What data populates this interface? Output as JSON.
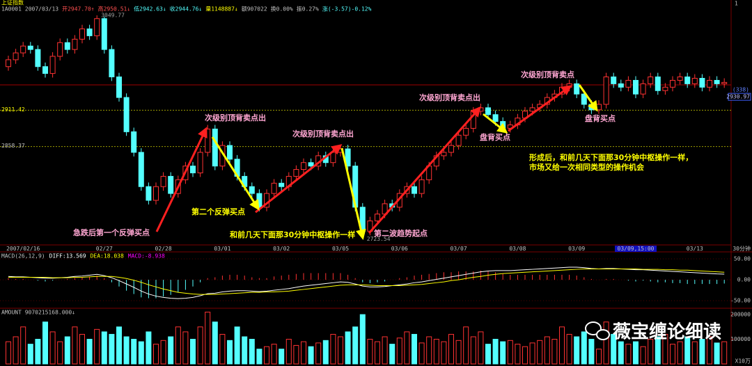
{
  "header": {
    "title": "上证指数",
    "corner": "1",
    "items": [
      "1A0001",
      "2007/03/13",
      "开2947.70↑",
      "高2950.51↓",
      "低2942.63↓",
      "收2944.76↓",
      "量1148887↓",
      "额907022",
      "换0.00%",
      "振0.27%",
      "涨(-3.57)-0.12%"
    ]
  },
  "watermark": "薇宝缠论细读",
  "chart_data": [
    {
      "type": "candlestick",
      "period": "30分钟",
      "up_color": "#ff3232",
      "down_color": "#54ffff",
      "ylim": [
        2717,
        3062
      ],
      "yticks": [
        2911.42,
        2858.37
      ],
      "prev_close": 2948.33,
      "cursor_price": {
        "count": "(338)",
        "value": 2930.97
      },
      "extremes": [
        3049.77,
        2723.54
      ],
      "categories": [
        null,
        null,
        "2007/02/16",
        null,
        null,
        null,
        null,
        null,
        null,
        null,
        null,
        null,
        null,
        "02/27",
        null,
        null,
        null,
        null,
        null,
        null,
        null,
        "02/28",
        null,
        null,
        null,
        null,
        null,
        null,
        null,
        "03/01",
        null,
        null,
        null,
        null,
        null,
        null,
        null,
        "03/02",
        null,
        null,
        null,
        null,
        null,
        null,
        null,
        "03/05",
        null,
        null,
        null,
        null,
        null,
        null,
        null,
        "03/06",
        null,
        null,
        null,
        null,
        null,
        null,
        null,
        "03/07",
        null,
        null,
        null,
        null,
        null,
        null,
        null,
        "03/08",
        null,
        null,
        null,
        null,
        null,
        null,
        null,
        "03/09",
        null,
        null,
        null,
        null,
        null,
        null,
        null,
        "03/09,15:00",
        null,
        null,
        null,
        null,
        null,
        null,
        null,
        "03/13",
        null,
        null,
        null,
        null
      ],
      "candles": [
        [
          2975,
          2991,
          2969,
          2985
        ],
        [
          2985,
          3001,
          2979,
          2995
        ],
        [
          2995,
          3011,
          2989,
          3005
        ],
        [
          3005,
          3011,
          2994,
          3000
        ],
        [
          3000,
          3006,
          2969,
          2975
        ],
        [
          2975,
          2981,
          2959,
          2965
        ],
        [
          2965,
          2996,
          2959,
          2990
        ],
        [
          2990,
          3016,
          2984,
          3010
        ],
        [
          3010,
          3016,
          2994,
          3000
        ],
        [
          3000,
          3021,
          2994,
          3015
        ],
        [
          3015,
          3036,
          3009,
          3030
        ],
        [
          3030,
          3036,
          3014,
          3020
        ],
        [
          3020,
          3049.77,
          3014,
          3045
        ],
        [
          3045,
          3048,
          2994,
          3000
        ],
        [
          3000,
          3006,
          2954,
          2960
        ],
        [
          2960,
          2966,
          2924,
          2930
        ],
        [
          2930,
          2936,
          2874,
          2880
        ],
        [
          2880,
          2886,
          2844,
          2850
        ],
        [
          2850,
          2856,
          2794,
          2800
        ],
        [
          2800,
          2806,
          2774,
          2780
        ],
        [
          2780,
          2806,
          2774,
          2800
        ],
        [
          2800,
          2821,
          2794,
          2815
        ],
        [
          2815,
          2821,
          2784,
          2790
        ],
        [
          2790,
          2816,
          2784,
          2810
        ],
        [
          2810,
          2836,
          2804,
          2830
        ],
        [
          2830,
          2836,
          2814,
          2820
        ],
        [
          2820,
          2856,
          2814,
          2850
        ],
        [
          2850,
          2890,
          2844,
          2884
        ],
        [
          2884,
          2890,
          2824,
          2830
        ],
        [
          2830,
          2866,
          2824,
          2860
        ],
        [
          2860,
          2866,
          2834,
          2840
        ],
        [
          2840,
          2846,
          2809,
          2815
        ],
        [
          2815,
          2821,
          2794,
          2800
        ],
        [
          2800,
          2806,
          2784,
          2790
        ],
        [
          2790,
          2796,
          2764,
          2770
        ],
        [
          2770,
          2796,
          2764,
          2790
        ],
        [
          2790,
          2811,
          2784,
          2805
        ],
        [
          2805,
          2811,
          2794,
          2800
        ],
        [
          2800,
          2821,
          2794,
          2815
        ],
        [
          2815,
          2831,
          2809,
          2825
        ],
        [
          2825,
          2841,
          2819,
          2835
        ],
        [
          2835,
          2841,
          2824,
          2830
        ],
        [
          2830,
          2851,
          2824,
          2845
        ],
        [
          2845,
          2851,
          2829,
          2835
        ],
        [
          2835,
          2856,
          2829,
          2850
        ],
        [
          2850,
          2861,
          2844,
          2855
        ],
        [
          2855,
          2861,
          2824,
          2830
        ],
        [
          2830,
          2836,
          2764,
          2770
        ],
        [
          2770,
          2776,
          2723.54,
          2735
        ],
        [
          2735,
          2756,
          2729,
          2750
        ],
        [
          2750,
          2766,
          2744,
          2760
        ],
        [
          2760,
          2781,
          2754,
          2775
        ],
        [
          2775,
          2781,
          2764,
          2770
        ],
        [
          2770,
          2796,
          2764,
          2790
        ],
        [
          2790,
          2806,
          2784,
          2800
        ],
        [
          2800,
          2806,
          2784,
          2790
        ],
        [
          2790,
          2816,
          2784,
          2810
        ],
        [
          2810,
          2836,
          2804,
          2830
        ],
        [
          2830,
          2851,
          2824,
          2845
        ],
        [
          2845,
          2856,
          2839,
          2850
        ],
        [
          2850,
          2866,
          2844,
          2860
        ],
        [
          2860,
          2881,
          2854,
          2875
        ],
        [
          2875,
          2891,
          2869,
          2885
        ],
        [
          2885,
          2916,
          2879,
          2910
        ],
        [
          2910,
          2921,
          2904,
          2915
        ],
        [
          2915,
          2921,
          2899,
          2905
        ],
        [
          2905,
          2911,
          2889,
          2895
        ],
        [
          2895,
          2901,
          2879,
          2885
        ],
        [
          2885,
          2896,
          2879,
          2890
        ],
        [
          2890,
          2906,
          2884,
          2900
        ],
        [
          2900,
          2916,
          2894,
          2910
        ],
        [
          2910,
          2921,
          2904,
          2915
        ],
        [
          2915,
          2926,
          2909,
          2920
        ],
        [
          2920,
          2936,
          2914,
          2930
        ],
        [
          2930,
          2941,
          2924,
          2935
        ],
        [
          2935,
          2951,
          2929,
          2945
        ],
        [
          2945,
          2956,
          2939,
          2950
        ],
        [
          2950,
          2956,
          2929,
          2935
        ],
        [
          2935,
          2941,
          2914,
          2920
        ],
        [
          2920,
          2926,
          2906,
          2912
        ],
        [
          2912,
          2926,
          2906,
          2920
        ],
        [
          2920,
          2966,
          2914,
          2960
        ],
        [
          2960,
          2966,
          2944,
          2950
        ],
        [
          2950,
          2956,
          2939,
          2945
        ],
        [
          2945,
          2961,
          2939,
          2955
        ],
        [
          2955,
          2961,
          2929,
          2935
        ],
        [
          2935,
          2956,
          2929,
          2950
        ],
        [
          2950,
          2966,
          2944,
          2960
        ],
        [
          2960,
          2966,
          2934,
          2940
        ],
        [
          2940,
          2951,
          2934,
          2945
        ],
        [
          2945,
          2961,
          2939,
          2955
        ],
        [
          2955,
          2966,
          2949,
          2960
        ],
        [
          2960,
          2966,
          2944,
          2950
        ],
        [
          2950,
          2964,
          2944,
          2958
        ],
        [
          2958,
          2964,
          2939,
          2945
        ],
        [
          2945,
          2961,
          2939,
          2955
        ],
        [
          2955,
          2961,
          2944,
          2950
        ],
        [
          2950,
          2958,
          2944,
          2952
        ]
      ],
      "annotations": [
        {
          "text": "急跌后第一个反弹买点",
          "color": "#ffa6d2"
        },
        {
          "text": "次级别顶背卖点出",
          "color": "#ffa6d2"
        },
        {
          "text": "第二个反弹买点",
          "color": "#ffff00"
        },
        {
          "text": "次级别顶背卖点出",
          "color": "#ffa6d2"
        },
        {
          "text": "和前几天下面那30分钟中枢操作一样",
          "color": "#ffff00"
        },
        {
          "text": "第二波趋势起点",
          "color": "#ffa6d2"
        },
        {
          "text": "次级别顶背卖点出",
          "color": "#ffa6d2"
        },
        {
          "text": "盘背买点",
          "color": "#ffa6d2"
        },
        {
          "text": "次级别顶背卖点",
          "color": "#ffa6d2"
        },
        {
          "text": "盘背买点",
          "color": "#ffa6d2"
        },
        {
          "text": "形成后，和前几天下面那30分钟中枢操作一样，",
          "color": "#ffff00"
        },
        {
          "text": "市场又给一次相同类型的操作机会",
          "color": "#ffff00"
        }
      ]
    },
    {
      "type": "macd",
      "title": "MACD(26,12,9)",
      "ylim": [
        -63,
        65
      ],
      "yticks": [
        {
          "value": 50,
          "label": "50.00"
        },
        {
          "value": 0,
          "label": "0.00"
        },
        {
          "value": -50,
          "label": "-50.00"
        }
      ],
      "series": [
        {
          "name": "DIFF:13.569",
          "color": "#ffffff",
          "values": [
            8,
            7,
            7,
            6,
            5,
            4,
            4,
            5,
            6,
            8,
            9,
            11,
            13,
            10,
            5,
            -2,
            -10,
            -18,
            -27,
            -34,
            -39,
            -42,
            -44,
            -45,
            -44,
            -42,
            -38,
            -33,
            -32,
            -29,
            -27,
            -26,
            -26,
            -27,
            -28,
            -27,
            -25,
            -23,
            -21,
            -18,
            -15,
            -13,
            -11,
            -9,
            -7,
            -5,
            -6,
            -10,
            -15,
            -17,
            -17,
            -16,
            -14,
            -12,
            -10,
            -7,
            -5,
            -2,
            1,
            4,
            7,
            10,
            13,
            16,
            19,
            21,
            22,
            22,
            22,
            23,
            24,
            25,
            26,
            27,
            28,
            29,
            30,
            30,
            29,
            27,
            26,
            27,
            27,
            26,
            25,
            24,
            24,
            23,
            22,
            21,
            20,
            19,
            18,
            17,
            16,
            15,
            14,
            13.569
          ]
        },
        {
          "name": "DEA:18.038",
          "color": "#ffff00",
          "values": [
            6,
            6,
            6,
            6,
            6,
            6,
            5,
            5,
            5,
            6,
            6,
            7,
            8,
            8,
            8,
            6,
            3,
            -1,
            -6,
            -12,
            -17,
            -22,
            -26,
            -30,
            -32,
            -34,
            -35,
            -35,
            -35,
            -34,
            -33,
            -32,
            -31,
            -30,
            -30,
            -29,
            -29,
            -28,
            -27,
            -25,
            -23,
            -21,
            -19,
            -17,
            -15,
            -13,
            -12,
            -12,
            -12,
            -13,
            -14,
            -14,
            -14,
            -14,
            -13,
            -12,
            -11,
            -9,
            -7,
            -5,
            -2,
            0,
            3,
            6,
            8,
            11,
            13,
            15,
            16,
            17,
            18,
            19,
            20,
            21,
            22,
            23,
            24,
            25,
            26,
            26,
            26,
            26,
            26,
            26,
            26,
            26,
            25,
            25,
            25,
            24,
            24,
            23,
            23,
            22,
            21,
            20,
            19,
            18.038
          ]
        }
      ],
      "histogram": {
        "name": "MACD:-8.938",
        "color": "#ff00ff",
        "values": [
          4,
          2,
          2,
          0,
          -2,
          -4,
          -2,
          0,
          2,
          4,
          6,
          8,
          10,
          4,
          -6,
          -16,
          -26,
          -34,
          -42,
          -44,
          -44,
          -40,
          -36,
          -30,
          -24,
          -16,
          -6,
          4,
          6,
          10,
          12,
          12,
          10,
          6,
          4,
          4,
          8,
          10,
          12,
          14,
          16,
          16,
          16,
          16,
          16,
          16,
          12,
          4,
          -6,
          -8,
          -6,
          -4,
          0,
          4,
          6,
          10,
          12,
          14,
          16,
          18,
          18,
          20,
          20,
          20,
          22,
          20,
          18,
          14,
          12,
          12,
          12,
          12,
          12,
          12,
          12,
          12,
          12,
          10,
          6,
          2,
          0,
          2,
          2,
          0,
          -2,
          -4,
          -2,
          -4,
          -6,
          -6,
          -8,
          -8,
          -10,
          -10,
          -10,
          -10,
          -10,
          -8.938
        ]
      }
    },
    {
      "type": "bar",
      "title": "AMOUNT 9070215168.000↓",
      "unit": "X10万",
      "ylim": [
        0,
        220000
      ],
      "yticks": [
        200000,
        100000
      ],
      "values": [
        90000,
        110000,
        150000,
        80000,
        100000,
        170000,
        130000,
        90000,
        110000,
        150000,
        120000,
        100000,
        140000,
        130000,
        120000,
        150000,
        110000,
        100000,
        90000,
        130000,
        80000,
        95000,
        110000,
        150000,
        130000,
        100000,
        150000,
        210000,
        170000,
        120000,
        95000,
        150000,
        110000,
        100000,
        60000,
        70000,
        80000,
        60000,
        100000,
        75000,
        90000,
        70000,
        85000,
        95000,
        120000,
        110000,
        130000,
        150000,
        200000,
        100000,
        90000,
        110000,
        80000,
        105000,
        130000,
        120000,
        85000,
        110000,
        100000,
        90000,
        120000,
        95000,
        150000,
        110000,
        130000,
        80000,
        100000,
        90000,
        95000,
        80000,
        70000,
        85000,
        95000,
        110000,
        100000,
        150000,
        120000,
        110000,
        130000,
        100000,
        60000,
        170000,
        120000,
        90000,
        80000,
        90000,
        70000,
        100000,
        110000,
        120000,
        80000,
        90000,
        110000,
        90000,
        100000,
        110000,
        85000,
        90000
      ]
    }
  ]
}
